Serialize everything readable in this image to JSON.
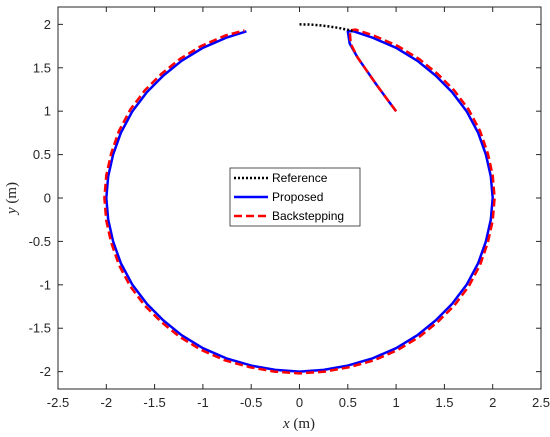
{
  "chart_data": {
    "type": "line",
    "title": "",
    "xlabel": {
      "var": "x",
      "unit": " (m)"
    },
    "ylabel": {
      "var": "y",
      "unit": " (m)"
    },
    "xlim": [
      -2.5,
      2.5
    ],
    "ylim": [
      -2.2,
      2.2
    ],
    "xticks": [
      -2.5,
      -2,
      -1.5,
      -1,
      -0.5,
      0,
      0.5,
      1,
      1.5,
      2,
      2.5
    ],
    "xtick_labels": [
      "-2.5",
      "-2",
      "-1.5",
      "-1",
      "-0.5",
      "0",
      "0.5",
      "1",
      "1.5",
      "2",
      "2.5"
    ],
    "yticks": [
      -2,
      -1.5,
      -1,
      -0.5,
      0,
      0.5,
      1,
      1.5,
      2
    ],
    "ytick_labels": [
      "-2",
      "-1.5",
      "-1",
      "-0.5",
      "0",
      "0.5",
      "1",
      "1.5",
      "2"
    ],
    "grid": false,
    "legend_position": "center",
    "series": [
      {
        "name": "Reference",
        "style": "dotted",
        "color": "#000000",
        "x": [
          0.0,
          0.1,
          0.2,
          0.3,
          0.4,
          0.5,
          0.55
        ],
        "y": [
          2.0,
          1.998,
          1.99,
          1.977,
          1.96,
          1.937,
          1.923
        ]
      },
      {
        "name": "Proposed",
        "style": "solid",
        "color": "#0000ff",
        "x": [
          1.0,
          0.9,
          0.8,
          0.7,
          0.6,
          0.52,
          0.5,
          0.56,
          0.75,
          1.0,
          1.22,
          1.41,
          1.58,
          1.73,
          1.85,
          1.93,
          1.98,
          2.0,
          1.98,
          1.93,
          1.85,
          1.73,
          1.58,
          1.41,
          1.22,
          1.0,
          0.75,
          0.5,
          0.25,
          0.0,
          -0.25,
          -0.5,
          -0.75,
          -1.0,
          -1.22,
          -1.41,
          -1.58,
          -1.73,
          -1.85,
          -1.93,
          -1.98,
          -2.0,
          -1.98,
          -1.93,
          -1.85,
          -1.73,
          -1.58,
          -1.41,
          -1.22,
          -1.0,
          -0.75,
          -0.55
        ],
        "y": [
          1.0,
          1.15,
          1.3,
          1.46,
          1.62,
          1.78,
          1.92,
          1.92,
          1.85,
          1.73,
          1.58,
          1.41,
          1.22,
          1.0,
          0.75,
          0.5,
          0.25,
          0.0,
          -0.25,
          -0.5,
          -0.75,
          -1.0,
          -1.22,
          -1.41,
          -1.58,
          -1.73,
          -1.85,
          -1.93,
          -1.98,
          -2.0,
          -1.98,
          -1.93,
          -1.85,
          -1.73,
          -1.58,
          -1.41,
          -1.22,
          -1.0,
          -0.75,
          -0.5,
          -0.25,
          0.0,
          0.25,
          0.5,
          0.75,
          1.0,
          1.22,
          1.41,
          1.58,
          1.73,
          1.85,
          1.92
        ]
      },
      {
        "name": "Backstepping",
        "style": "dashed",
        "color": "#ff0000",
        "x": [
          1.0,
          0.9,
          0.8,
          0.7,
          0.6,
          0.53,
          0.52,
          0.58,
          0.77,
          1.02,
          1.24,
          1.43,
          1.6,
          1.75,
          1.87,
          1.95,
          2.0,
          2.02,
          2.0,
          1.95,
          1.87,
          1.75,
          1.6,
          1.43,
          1.24,
          1.02,
          0.77,
          0.51,
          0.26,
          0.0,
          -0.26,
          -0.51,
          -0.77,
          -1.02,
          -1.24,
          -1.43,
          -1.6,
          -1.75,
          -1.87,
          -1.95,
          -2.0,
          -2.02,
          -2.0,
          -1.95,
          -1.87,
          -1.75,
          -1.6,
          -1.43,
          -1.24,
          -1.02,
          -0.77,
          -0.57
        ],
        "y": [
          1.0,
          1.15,
          1.3,
          1.46,
          1.62,
          1.78,
          1.93,
          1.94,
          1.87,
          1.75,
          1.6,
          1.43,
          1.24,
          1.02,
          0.77,
          0.51,
          0.26,
          0.0,
          -0.26,
          -0.51,
          -0.77,
          -1.02,
          -1.24,
          -1.43,
          -1.6,
          -1.75,
          -1.87,
          -1.95,
          -2.0,
          -2.02,
          -2.0,
          -1.95,
          -1.87,
          -1.75,
          -1.6,
          -1.43,
          -1.24,
          -1.02,
          -0.77,
          -0.51,
          -0.26,
          0.0,
          0.26,
          0.51,
          0.77,
          1.02,
          1.24,
          1.43,
          1.6,
          1.75,
          1.87,
          1.93
        ]
      }
    ]
  }
}
